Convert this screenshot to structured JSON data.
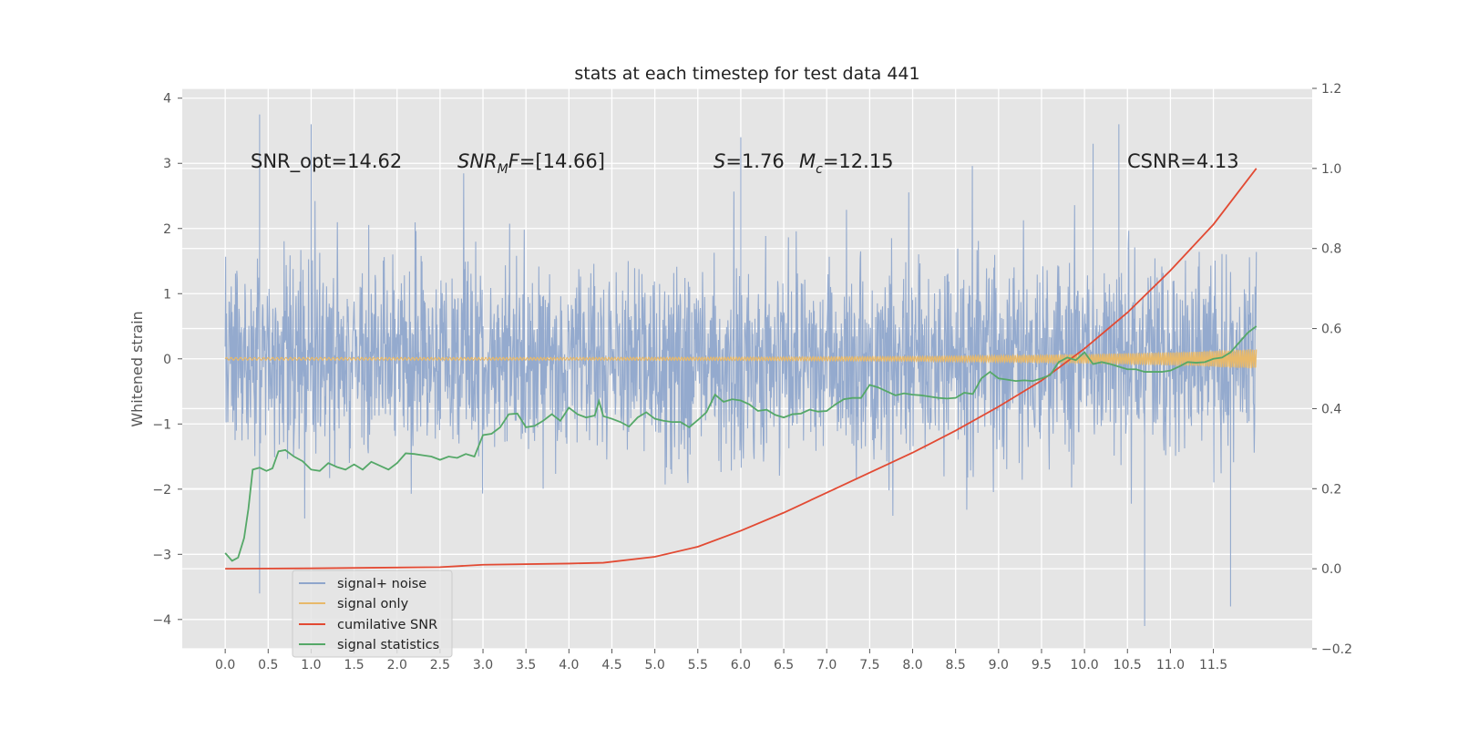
{
  "chart_data": {
    "type": "line",
    "title": "stats at each timestep for test data 441",
    "ylabel": "Whitened strain",
    "xlabel": "",
    "xlim": [
      -0.5,
      12.65
    ],
    "ylim": [
      -4.45,
      4.15
    ],
    "y2lim": [
      -0.2,
      1.2
    ],
    "x_ticks": [
      "0.0",
      "0.5",
      "1.0",
      "1.5",
      "2.0",
      "2.5",
      "3.0",
      "3.5",
      "4.0",
      "4.5",
      "5.0",
      "5.5",
      "6.0",
      "6.5",
      "7.0",
      "7.5",
      "8.0",
      "8.5",
      "9.0",
      "9.5",
      "10.0",
      "10.5",
      "11.0",
      "11.5"
    ],
    "y_ticks": [
      "4",
      "3",
      "2",
      "1",
      "0",
      "−1",
      "−2",
      "−3",
      "−4"
    ],
    "y2_ticks": [
      "1.2",
      "1.0",
      "0.8",
      "0.6",
      "0.4",
      "0.2",
      "0.0",
      "−0.2"
    ],
    "grid": true,
    "legend_position": "lower-left",
    "annotations": {
      "snr_opt": "SNR_opt=14.62",
      "snr_mf": "=[14.66]",
      "s": "=1.76",
      "mc": "=12.15",
      "csnr": "CSNR=4.13"
    },
    "series": [
      {
        "name": "signal+ noise",
        "color": "#8fa6cc",
        "description_axis": "left",
        "x_range": [
          0.0,
          12.0
        ],
        "typical_band": [
          -2.0,
          2.0
        ],
        "peaks": [
          [
            0.4,
            3.75
          ],
          [
            1.0,
            3.6
          ],
          [
            6.0,
            3.4
          ],
          [
            10.1,
            3.3
          ],
          [
            10.4,
            3.6
          ],
          [
            0.4,
            -3.6
          ],
          [
            10.7,
            -4.1
          ],
          [
            11.7,
            -3.8
          ]
        ]
      },
      {
        "name": "signal only",
        "color": "#e8b96a",
        "description_axis": "left",
        "x": [
          0.0,
          2.0,
          4.0,
          6.0,
          8.0,
          9.0,
          10.0,
          11.0,
          12.0
        ],
        "amplitude": [
          0.02,
          0.02,
          0.02,
          0.025,
          0.035,
          0.05,
          0.07,
          0.1,
          0.15
        ]
      },
      {
        "name": "cumilative SNR",
        "color": "#e24a33",
        "description_axis": "right",
        "x": [
          0.0,
          1.0,
          2.0,
          2.5,
          3.0,
          4.0,
          4.4,
          5.0,
          5.5,
          6.0,
          6.5,
          7.0,
          7.5,
          8.0,
          8.5,
          9.0,
          9.5,
          10.0,
          10.5,
          11.0,
          11.5,
          12.0
        ],
        "values": [
          0.0,
          0.001,
          0.003,
          0.004,
          0.01,
          0.013,
          0.015,
          0.03,
          0.055,
          0.095,
          0.14,
          0.19,
          0.24,
          0.29,
          0.345,
          0.405,
          0.47,
          0.55,
          0.64,
          0.745,
          0.86,
          1.0
        ]
      },
      {
        "name": "signal statistics",
        "color": "#55a868",
        "description_axis": "left",
        "x": [
          0.0,
          0.08,
          0.15,
          0.22,
          0.27,
          0.32,
          0.4,
          0.48,
          0.55,
          0.62,
          0.7,
          0.8,
          0.9,
          1.0,
          1.1,
          1.2,
          1.3,
          1.4,
          1.5,
          1.6,
          1.7,
          1.8,
          1.9,
          2.0,
          2.1,
          2.2,
          2.3,
          2.4,
          2.5,
          2.6,
          2.7,
          2.8,
          2.9,
          3.0,
          3.1,
          3.2,
          3.3,
          3.4,
          3.5,
          3.6,
          3.7,
          3.8,
          3.9,
          4.0,
          4.1,
          4.2,
          4.3,
          4.35,
          4.4,
          4.5,
          4.6,
          4.7,
          4.8,
          4.9,
          5.0,
          5.1,
          5.2,
          5.3,
          5.4,
          5.5,
          5.6,
          5.7,
          5.8,
          5.9,
          6.0,
          6.1,
          6.2,
          6.3,
          6.4,
          6.5,
          6.6,
          6.7,
          6.8,
          6.9,
          7.0,
          7.1,
          7.2,
          7.3,
          7.4,
          7.5,
          7.6,
          7.7,
          7.8,
          7.9,
          8.0,
          8.1,
          8.2,
          8.3,
          8.4,
          8.5,
          8.6,
          8.7,
          8.8,
          8.9,
          9.0,
          9.1,
          9.2,
          9.3,
          9.4,
          9.5,
          9.6,
          9.7,
          9.8,
          9.9,
          10.0,
          10.1,
          10.2,
          10.3,
          10.4,
          10.5,
          10.6,
          10.7,
          10.8,
          10.9,
          11.0,
          11.1,
          11.2,
          11.3,
          11.4,
          11.5,
          11.6,
          11.7,
          11.8,
          11.9,
          12.0
        ],
        "values": [
          -2.98,
          -3.1,
          -3.05,
          -2.75,
          -2.3,
          -1.7,
          -1.67,
          -1.72,
          -1.68,
          -1.42,
          -1.4,
          -1.5,
          -1.57,
          -1.7,
          -1.72,
          -1.6,
          -1.66,
          -1.7,
          -1.62,
          -1.7,
          -1.58,
          -1.64,
          -1.7,
          -1.6,
          -1.45,
          -1.46,
          -1.48,
          -1.5,
          -1.55,
          -1.5,
          -1.52,
          -1.46,
          -1.5,
          -1.17,
          -1.15,
          -1.05,
          -0.85,
          -0.84,
          -1.05,
          -1.03,
          -0.95,
          -0.85,
          -0.95,
          -0.75,
          -0.85,
          -0.9,
          -0.87,
          -0.65,
          -0.88,
          -0.92,
          -0.97,
          -1.04,
          -0.9,
          -0.82,
          -0.92,
          -0.95,
          -0.97,
          -0.97,
          -1.05,
          -0.94,
          -0.82,
          -0.55,
          -0.66,
          -0.62,
          -0.64,
          -0.7,
          -0.8,
          -0.78,
          -0.86,
          -0.9,
          -0.85,
          -0.84,
          -0.78,
          -0.81,
          -0.8,
          -0.7,
          -0.62,
          -0.6,
          -0.6,
          -0.4,
          -0.44,
          -0.5,
          -0.56,
          -0.53,
          -0.55,
          -0.56,
          -0.58,
          -0.6,
          -0.61,
          -0.6,
          -0.52,
          -0.54,
          -0.3,
          -0.2,
          -0.3,
          -0.32,
          -0.34,
          -0.33,
          -0.34,
          -0.3,
          -0.25,
          -0.05,
          0.02,
          -0.02,
          0.1,
          -0.08,
          -0.05,
          -0.08,
          -0.12,
          -0.16,
          -0.16,
          -0.2,
          -0.2,
          -0.2,
          -0.18,
          -0.12,
          -0.05,
          -0.06,
          -0.05,
          0.0,
          0.02,
          0.1,
          0.25,
          0.4,
          0.5
        ]
      }
    ]
  }
}
